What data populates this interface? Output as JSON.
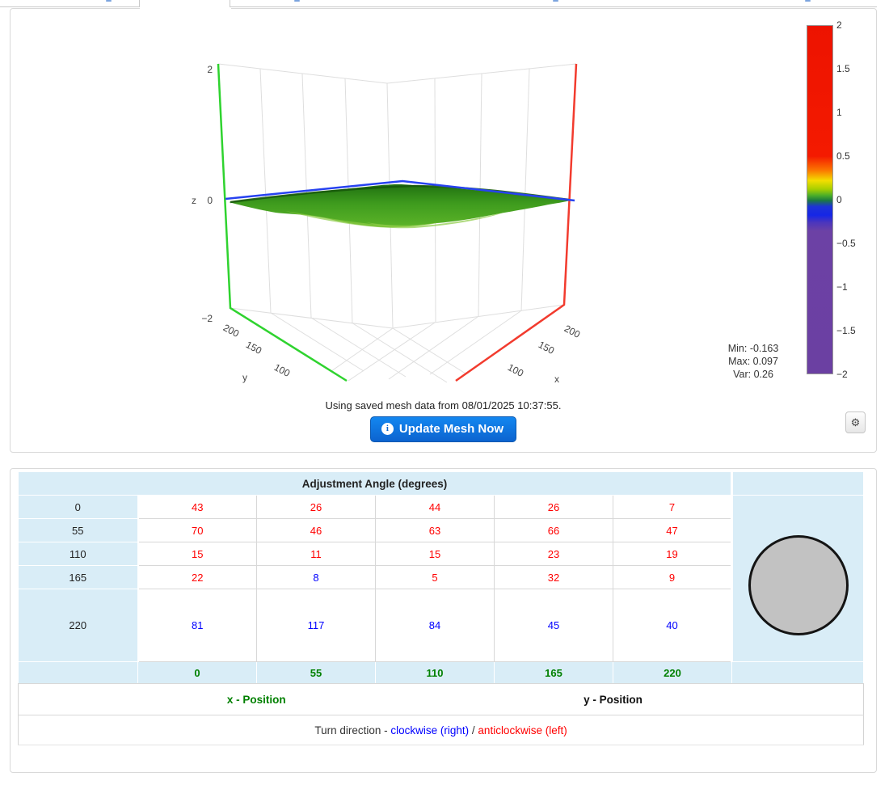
{
  "plot": {
    "z_axis": {
      "label": "z",
      "ticks": [
        "2",
        "0",
        "−2"
      ]
    },
    "y_axis": {
      "label": "y",
      "ticks": [
        "200",
        "150",
        "100"
      ]
    },
    "x_axis": {
      "label": "x",
      "ticks": [
        "200",
        "150",
        "100"
      ]
    },
    "colorbar": {
      "ticks": [
        "2",
        "1.5",
        "1",
        "0.5",
        "0",
        "−0.5",
        "−1",
        "−1.5",
        "−2"
      ]
    },
    "stats": {
      "min": "Min: -0.163",
      "max": "Max: 0.097",
      "var": "Var: 0.26"
    },
    "caption": "Using saved mesh data from 08/01/2025 10:37:55.",
    "update_button_label": "Update Mesh Now",
    "info_icon": "i",
    "gear_icon": "⚙"
  },
  "chart_data": {
    "type": "surface",
    "description": "Nearly flat wavy green 3D mesh surface around z=0 inside a wireframe box; green y-axis line, red x-axis line, blue zero-level line along back walls",
    "x": {
      "label": "x",
      "ticks": [
        100,
        150,
        200
      ]
    },
    "y": {
      "label": "y",
      "ticks": [
        100,
        150,
        200
      ]
    },
    "z": {
      "label": "z",
      "range": [
        -2,
        2
      ],
      "ticks": [
        -2,
        0,
        2
      ]
    },
    "colorbar_range": [
      -2,
      2
    ],
    "stats": {
      "min": -0.163,
      "max": 0.097,
      "var": 0.26
    }
  },
  "table": {
    "title": "Adjustment Angle (degrees)",
    "row_labels": [
      "0",
      "55",
      "110",
      "165",
      "220"
    ],
    "col_labels": [
      "0",
      "55",
      "110",
      "165",
      "220"
    ],
    "values": [
      [
        "43",
        "26",
        "44",
        "26",
        "7"
      ],
      [
        "70",
        "46",
        "63",
        "66",
        "47"
      ],
      [
        "15",
        "11",
        "15",
        "23",
        "19"
      ],
      [
        "22",
        "8",
        "5",
        "32",
        "9"
      ],
      [
        "81",
        "117",
        "84",
        "45",
        "40"
      ]
    ],
    "value_colors": [
      [
        "red",
        "red",
        "red",
        "red",
        "red"
      ],
      [
        "red",
        "red",
        "red",
        "red",
        "red"
      ],
      [
        "red",
        "red",
        "red",
        "red",
        "red"
      ],
      [
        "red",
        "blue",
        "red",
        "red",
        "red"
      ],
      [
        "blue",
        "blue",
        "blue",
        "blue",
        "blue"
      ]
    ],
    "x_position_label": "x - Position",
    "y_position_label": "y - Position",
    "turn_direction": {
      "prefix": "Turn direction - ",
      "clockwise": "clockwise (right)",
      "separator": " / ",
      "anticlockwise": "anticlockwise (left)"
    }
  },
  "colors": {
    "value_red": "#ff0000",
    "value_blue": "#0000ff",
    "axis_green": "#008000",
    "table_header_bg": "#d9edf7",
    "button_blue": "#0c63cf",
    "colorbar_purple": "#6b40a2",
    "surface_green": "#4aa51f"
  }
}
